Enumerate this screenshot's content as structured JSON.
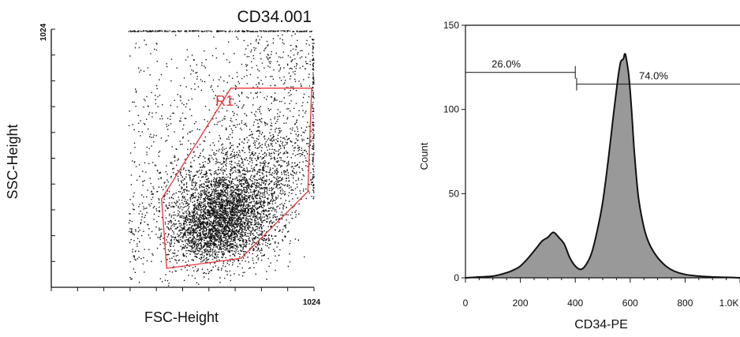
{
  "chart_data": [
    {
      "type": "scatter",
      "title": "CD34.001",
      "xlabel": "FSC-Height",
      "ylabel": "SSC-Height",
      "xlim": [
        0,
        1024
      ],
      "ylim": [
        0,
        1024
      ],
      "x_tick_labels": [
        "1024"
      ],
      "y_tick_labels": [
        "1024"
      ],
      "gate": {
        "name": "R1",
        "color": "#e8343c",
        "vertices": [
          [
            430,
            350
          ],
          [
            700,
            790
          ],
          [
            1015,
            790
          ],
          [
            1000,
            380
          ],
          [
            740,
            115
          ],
          [
            450,
            75
          ]
        ]
      },
      "density_clusters": [
        {
          "cx": 690,
          "cy": 300,
          "sx": 100,
          "sy": 95,
          "n": 3100
        },
        {
          "cx": 590,
          "cy": 210,
          "sx": 70,
          "sy": 60,
          "n": 700
        },
        {
          "cx": 860,
          "cy": 520,
          "sx": 110,
          "sy": 110,
          "n": 800
        },
        {
          "cx": 900,
          "cy": 900,
          "sx": 120,
          "sy": 90,
          "n": 250
        },
        {
          "cx": 470,
          "cy": 350,
          "sx": 120,
          "sy": 250,
          "n": 500
        },
        {
          "cx": 280,
          "cy": 220,
          "sx": 40,
          "sy": 80,
          "n": 180
        },
        {
          "cx": 620,
          "cy": 780,
          "sx": 270,
          "sy": 170,
          "n": 280
        }
      ],
      "point_color": "#111111"
    },
    {
      "type": "area",
      "title": "",
      "xlabel": "CD34-PE",
      "ylabel": "Count",
      "xlim": [
        0,
        1000
      ],
      "ylim": [
        0,
        150
      ],
      "x_ticks": [
        0,
        200,
        400,
        600,
        800,
        1000
      ],
      "x_tick_labels": [
        "0",
        "200",
        "400",
        "600",
        "800",
        "1.0K"
      ],
      "y_ticks": [
        0,
        50,
        100,
        150
      ],
      "y_tick_labels": [
        "0",
        "50",
        "100",
        "150"
      ],
      "fill_color": "#999999",
      "line_color": "#111111",
      "x": [
        0,
        50,
        100,
        150,
        180,
        200,
        230,
        260,
        280,
        300,
        320,
        340,
        360,
        380,
        400,
        420,
        440,
        460,
        480,
        500,
        520,
        540,
        555,
        565,
        575,
        580,
        585,
        595,
        605,
        615,
        630,
        650,
        670,
        700,
        730,
        760,
        800,
        850,
        900,
        950,
        1000
      ],
      "y": [
        0,
        0.5,
        1,
        3,
        5,
        7,
        12,
        18,
        22,
        24,
        27,
        24,
        20,
        12,
        7,
        5,
        8,
        15,
        28,
        45,
        70,
        98,
        118,
        128,
        130,
        133,
        131,
        120,
        100,
        75,
        48,
        30,
        20,
        12,
        7,
        4,
        2,
        1,
        0.5,
        0.3,
        0
      ],
      "markers": [
        {
          "label": "26.0%",
          "from": 0,
          "to": 400,
          "y": 122
        },
        {
          "label": "74.0%",
          "from": 405,
          "to": 1000,
          "y": 115
        }
      ]
    }
  ]
}
